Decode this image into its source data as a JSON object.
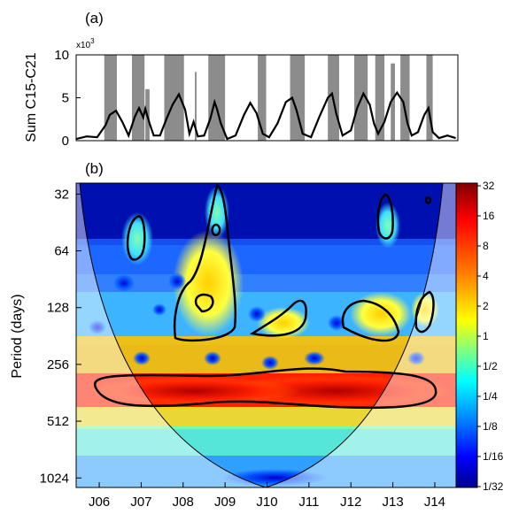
{
  "chart_data": [
    {
      "panel": "(a)",
      "type": "area",
      "ylabel": "Sum C15-C21",
      "y_multiplier": "x10",
      "y_multiplier_exp": "3",
      "ylim": [
        0,
        10
      ],
      "yticks": [
        "0",
        "5",
        "10"
      ],
      "series": [
        {
          "style": "gray-bars",
          "color": "#8c8c8c",
          "segments": [
            {
              "x": [
                2006.12,
                2006.42
              ],
              "y": 10
            },
            {
              "x": [
                2006.78,
                2007.08
              ],
              "y": 10
            },
            {
              "x": [
                2007.1,
                2007.2
              ],
              "y": 6
            },
            {
              "x": [
                2007.55,
                2008.02
              ],
              "y": 10
            },
            {
              "x": [
                2008.28,
                2008.32
              ],
              "y": 8
            },
            {
              "x": [
                2008.6,
                2009.0
              ],
              "y": 10
            },
            {
              "x": [
                2009.78,
                2009.98
              ],
              "y": 10
            },
            {
              "x": [
                2010.55,
                2010.9
              ],
              "y": 10
            },
            {
              "x": [
                2011.45,
                2011.72
              ],
              "y": 10
            },
            {
              "x": [
                2012.08,
                2012.4
              ],
              "y": 10
            },
            {
              "x": [
                2012.58,
                2012.8
              ],
              "y": 10
            },
            {
              "x": [
                2012.95,
                2013.05
              ],
              "y": 9
            },
            {
              "x": [
                2013.18,
                2013.4
              ],
              "y": 10
            },
            {
              "x": [
                2013.8,
                2013.95
              ],
              "y": 10
            }
          ]
        },
        {
          "style": "black-line",
          "color": "#000000",
          "x": [
            2005.45,
            2005.7,
            2005.95,
            2006.15,
            2006.25,
            2006.4,
            2006.55,
            2006.7,
            2006.85,
            2006.95,
            2007.05,
            2007.1,
            2007.2,
            2007.3,
            2007.45,
            2007.6,
            2007.75,
            2007.9,
            2008.05,
            2008.15,
            2008.25,
            2008.35,
            2008.5,
            2008.65,
            2008.75,
            2008.8,
            2008.9,
            2009.05,
            2009.25,
            2009.45,
            2009.6,
            2009.75,
            2009.9,
            2010.05,
            2010.25,
            2010.45,
            2010.6,
            2010.7,
            2010.85,
            2011.05,
            2011.25,
            2011.45,
            2011.55,
            2011.65,
            2011.8,
            2012.0,
            2012.15,
            2012.3,
            2012.45,
            2012.55,
            2012.65,
            2012.8,
            2012.95,
            2013.1,
            2013.25,
            2013.35,
            2013.45,
            2013.6,
            2013.75,
            2013.85,
            2013.95,
            2014.1,
            2014.3,
            2014.5
          ],
          "y": [
            0.2,
            0.5,
            0.4,
            1.8,
            3.0,
            3.5,
            2.2,
            0.6,
            2.8,
            3.8,
            2.7,
            3.7,
            2.0,
            0.6,
            0.6,
            2.5,
            4.2,
            5.4,
            3.6,
            0.8,
            2.2,
            0.5,
            0.6,
            2.6,
            4.5,
            3.8,
            2.0,
            0.2,
            0.6,
            3.0,
            4.4,
            3.2,
            0.8,
            0.4,
            2.0,
            4.5,
            5.0,
            3.6,
            0.8,
            0.4,
            2.8,
            5.0,
            5.5,
            3.2,
            0.6,
            1.2,
            3.8,
            5.5,
            4.2,
            2.0,
            0.8,
            2.2,
            4.5,
            5.6,
            4.5,
            2.0,
            0.6,
            1.0,
            3.0,
            3.8,
            1.0,
            0.3,
            0.6,
            0.3
          ]
        }
      ]
    },
    {
      "panel": "(b)",
      "type": "heatmap",
      "ylabel": "Period (days)",
      "y_scale": "log2",
      "yticks": [
        "32",
        "64",
        "128",
        "256",
        "512",
        "1024"
      ],
      "xticks": [
        "J06",
        "J07",
        "J08",
        "J09",
        "J10",
        "J11",
        "J12",
        "J13",
        "J14"
      ],
      "colorbar_ticks": [
        "32",
        "16",
        "8",
        "4",
        "2",
        "1",
        "1/2",
        "1/4",
        "1/8",
        "1/16",
        "1/32"
      ],
      "colorbar_range": [
        0.03125,
        32
      ],
      "colormap": [
        "#00008f",
        "#0000ff",
        "#0080ff",
        "#00ffff",
        "#80ff80",
        "#ffff00",
        "#ff8000",
        "#ff0000",
        "#800000"
      ],
      "significance_contours_period_days": [
        {
          "t": [
            2006.35,
            2006.55,
            2006.5,
            2006.35
          ],
          "period": [
            110,
            80,
            42,
            60
          ]
        },
        {
          "t": [
            2008.05,
            2008.45,
            2008.75,
            2009.0,
            2008.75,
            2008.35
          ],
          "period": [
            190,
            180,
            140,
            32,
            60,
            100
          ]
        },
        {
          "t": [
            2008.15,
            2008.3,
            2008.15
          ],
          "period": [
            145,
            125,
            130
          ]
        },
        {
          "t": [
            2008.85,
            2008.92,
            2008.85
          ],
          "period": [
            50,
            48,
            45
          ]
        },
        {
          "t": [
            2010.5,
            2011.0,
            2011.1,
            2010.9,
            2010.5
          ],
          "period": [
            180,
            200,
            120,
            120,
            160
          ]
        },
        {
          "t": [
            2012.4,
            2012.85,
            2013.1,
            2012.7,
            2012.4
          ],
          "period": [
            150,
            190,
            140,
            110,
            120
          ]
        },
        {
          "t": [
            2012.85,
            2012.95,
            2012.8
          ],
          "period": [
            36,
            60,
            55
          ]
        },
        {
          "t": [
            2013.55,
            2013.7,
            2013.6
          ],
          "period": [
            160,
            120,
            140
          ]
        },
        {
          "t": [
            2005.9,
            2008.8,
            2011.3,
            2013.8,
            2013.9,
            2011.5,
            2008.7,
            2006.2
          ],
          "period": [
            340,
            330,
            290,
            320,
            390,
            440,
            430,
            420
          ]
        }
      ],
      "cone_of_influence": "shaded"
    }
  ]
}
